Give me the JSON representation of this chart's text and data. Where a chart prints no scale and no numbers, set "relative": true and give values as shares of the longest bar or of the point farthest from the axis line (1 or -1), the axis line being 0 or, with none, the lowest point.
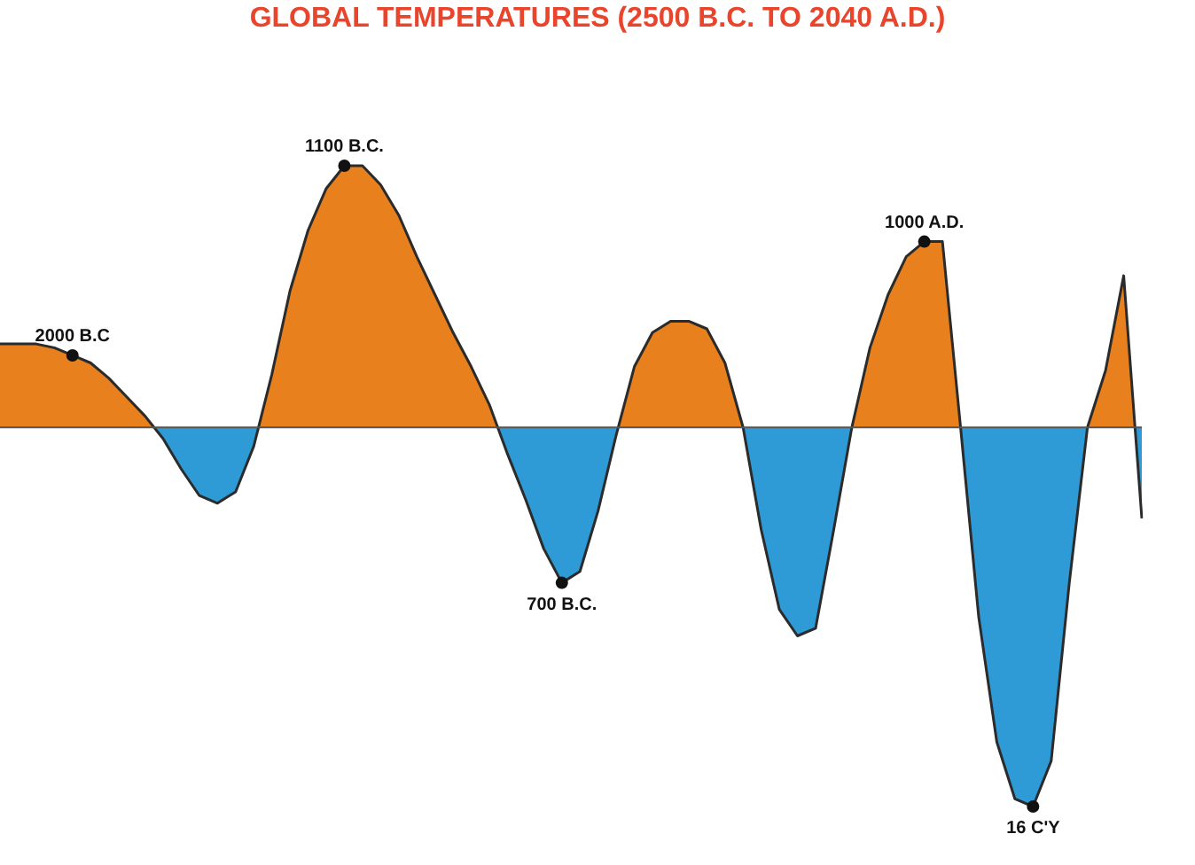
{
  "chart_data": {
    "type": "area",
    "title": "GLOBAL TEMPERATURES (2500 B.C. TO 2040 A.D.)",
    "relative": true,
    "grid": false,
    "legend": false,
    "marker": "none",
    "line_style": "solid",
    "categories": [
      null,
      null,
      null,
      null,
      null,
      null,
      null,
      null,
      null,
      null,
      null,
      null,
      null,
      null,
      null,
      null,
      null,
      null,
      null,
      null,
      null,
      null,
      null,
      null,
      null,
      null,
      null,
      null,
      null,
      null,
      null,
      null,
      null,
      null,
      null,
      null,
      null,
      null,
      null,
      null,
      null,
      null,
      null,
      null,
      null,
      null,
      null,
      null,
      null,
      null,
      null,
      null,
      null,
      null,
      null,
      null,
      null,
      null,
      null,
      null,
      null,
      null,
      null,
      null
    ],
    "series": [
      {
        "color": "#2b2b2b",
        "values": [
          0.22,
          0.22,
          0.22,
          0.21,
          0.19,
          0.17,
          0.13,
          0.08,
          0.03,
          -0.03,
          -0.11,
          -0.18,
          -0.2,
          -0.17,
          -0.05,
          0.14,
          0.36,
          0.52,
          0.63,
          0.69,
          0.69,
          0.64,
          0.56,
          0.45,
          0.35,
          0.25,
          0.16,
          0.06,
          -0.07,
          -0.19,
          -0.32,
          -0.41,
          -0.38,
          -0.22,
          -0.02,
          0.16,
          0.25,
          0.28,
          0.28,
          0.26,
          0.17,
          0,
          -0.27,
          -0.48,
          -0.55,
          -0.53,
          -0.27,
          0,
          0.21,
          0.35,
          0.45,
          0.49,
          0.49,
          0,
          -0.5,
          -0.83,
          -0.98,
          -1,
          -0.88,
          -0.41,
          0,
          0.15,
          0.4,
          -0.24
        ]
      }
    ],
    "annotations": [
      {
        "text": "2000 B.C",
        "y": 0.19
      },
      {
        "text": "1100 B.C.",
        "y": 0.69
      },
      {
        "text": "700 B.C.",
        "y": -0.41
      },
      {
        "text": "1000 A.D.",
        "y": 0.49
      },
      {
        "text": "16 C'Y",
        "y": -1
      }
    ]
  }
}
